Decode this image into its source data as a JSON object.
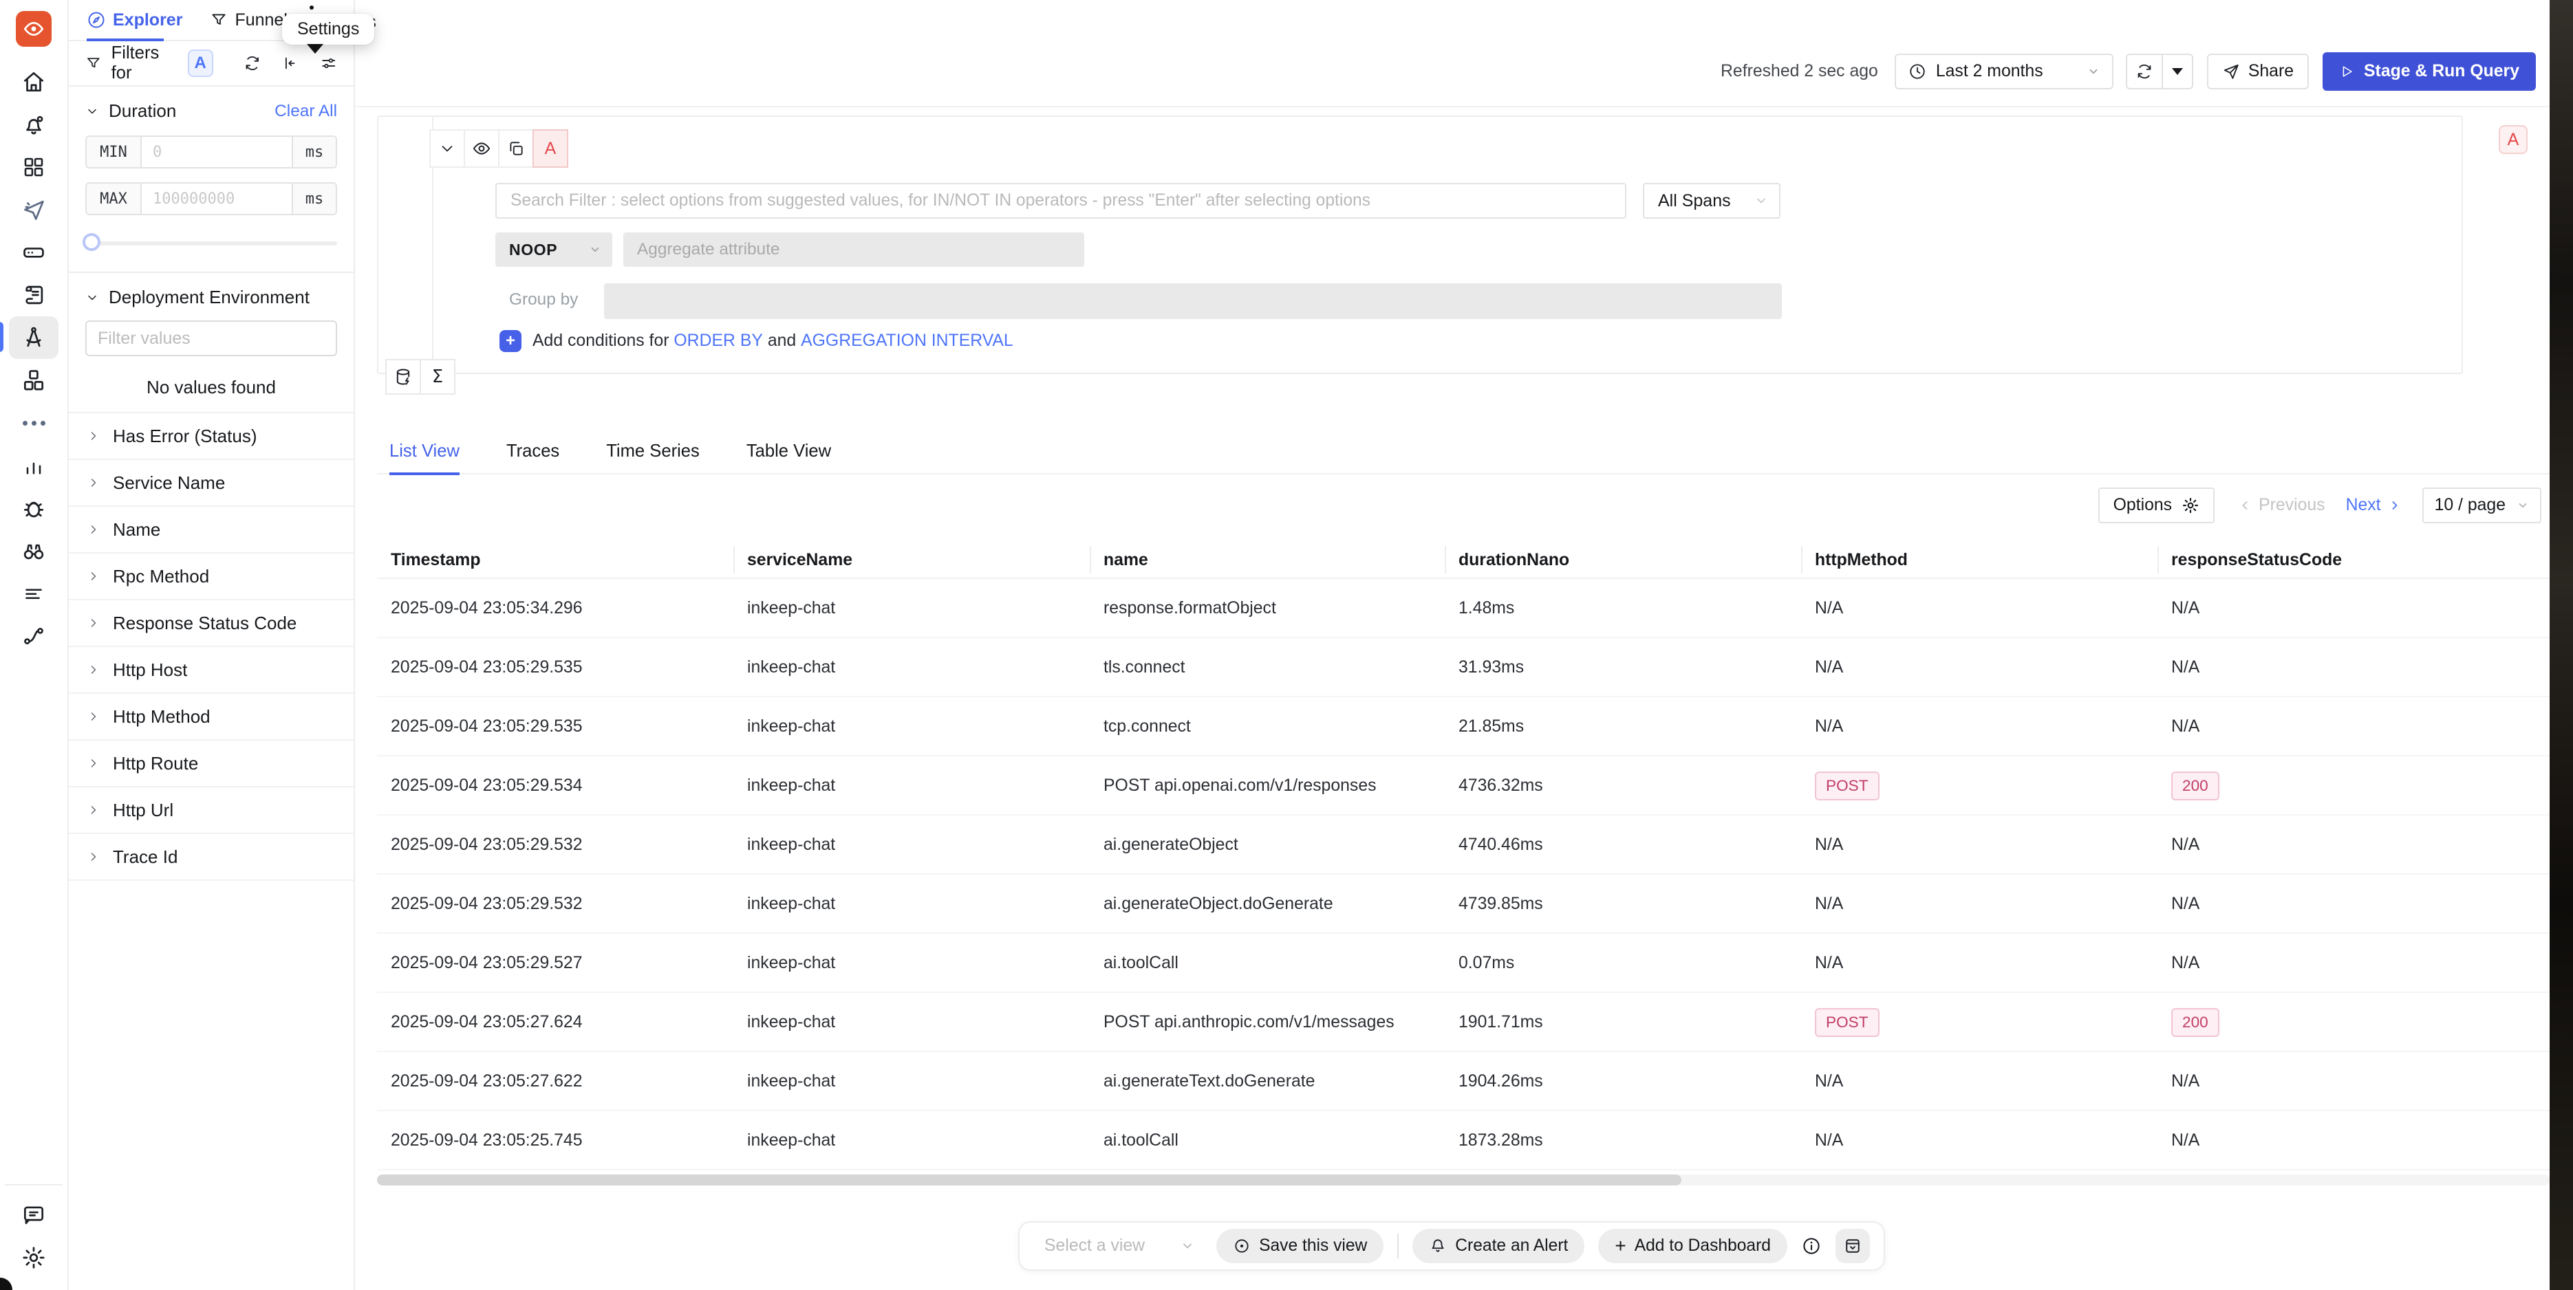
{
  "colors": {
    "accent_blue": "#4463e8",
    "link_blue": "#4e74f8",
    "run_button_blue": "#3f51d6",
    "badge_pink_text": "#c23d68",
    "badge_pink_bg": "#fdeff3",
    "query_label_red": "#e5484d",
    "logo_orange": "#e5542e"
  },
  "rail": {
    "icons": [
      "signoz-logo",
      "home",
      "alerts-bell",
      "dashboards-grid",
      "messages-plane",
      "services-server",
      "logs-scroll",
      "traces-compass",
      "infra-cubes",
      "more-dots",
      "metrics-chart",
      "exceptions-bug",
      "service-map-binoculars",
      "billing-list",
      "integrations-pipeline"
    ],
    "bottom_icons": [
      "support-chat",
      "settings-gear"
    ],
    "active_icon": "traces-compass"
  },
  "tabs": {
    "explorer": "Explorer",
    "funnels": "Funnels",
    "views_clipped": "ws",
    "settings_tooltip": "Settings"
  },
  "filters": {
    "title": "Filters for",
    "query_badge": "A",
    "duration": {
      "label": "Duration",
      "clear_all": "Clear All",
      "min_label": "MIN",
      "min_placeholder": "0",
      "max_label": "MAX",
      "max_placeholder": "100000000",
      "unit": "ms"
    },
    "deployment": {
      "label": "Deployment Environment",
      "placeholder": "Filter values",
      "empty": "No values found"
    },
    "collapsed_sections": [
      "Has Error (Status)",
      "Service Name",
      "Name",
      "Rpc Method",
      "Response Status Code",
      "Http Host",
      "Http Method",
      "Http Route",
      "Http Url",
      "Trace Id"
    ]
  },
  "header": {
    "refreshed": "Refreshed 2 sec ago",
    "time_range": "Last 2 months",
    "share": "Share",
    "run": "Stage & Run Query"
  },
  "query": {
    "label": "A",
    "search_placeholder": "Search Filter : select options from suggested values, for IN/NOT IN operators - press \"Enter\" after selecting options",
    "span_scope": "All Spans",
    "aggregate_op": "NOOP",
    "aggregate_placeholder": "Aggregate attribute",
    "group_by_label": "Group by",
    "add_conditions_prefix": "Add conditions for",
    "order_by_link": "ORDER BY",
    "and_word": "and",
    "agg_interval_link": "AGGREGATION INTERVAL",
    "plus": "+"
  },
  "views": {
    "tabs": [
      "List View",
      "Traces",
      "Time Series",
      "Table View"
    ],
    "active": "List View"
  },
  "results_toolbar": {
    "options": "Options",
    "previous": "Previous",
    "next": "Next",
    "page_size": "10 / page"
  },
  "table": {
    "columns": [
      "Timestamp",
      "serviceName",
      "name",
      "durationNano",
      "httpMethod",
      "responseStatusCode"
    ],
    "rows": [
      {
        "timestamp": "2025-09-04 23:05:34.296",
        "service": "inkeep-chat",
        "name": "response.formatObject",
        "duration": "1.48ms",
        "method": {
          "text": "N/A",
          "badge": false
        },
        "status": {
          "text": "N/A",
          "badge": false
        }
      },
      {
        "timestamp": "2025-09-04 23:05:29.535",
        "service": "inkeep-chat",
        "name": "tls.connect",
        "duration": "31.93ms",
        "method": {
          "text": "N/A",
          "badge": false
        },
        "status": {
          "text": "N/A",
          "badge": false
        }
      },
      {
        "timestamp": "2025-09-04 23:05:29.535",
        "service": "inkeep-chat",
        "name": "tcp.connect",
        "duration": "21.85ms",
        "method": {
          "text": "N/A",
          "badge": false
        },
        "status": {
          "text": "N/A",
          "badge": false
        }
      },
      {
        "timestamp": "2025-09-04 23:05:29.534",
        "service": "inkeep-chat",
        "name": "POST api.openai.com/v1/responses",
        "duration": "4736.32ms",
        "method": {
          "text": "POST",
          "badge": true
        },
        "status": {
          "text": "200",
          "badge": true
        }
      },
      {
        "timestamp": "2025-09-04 23:05:29.532",
        "service": "inkeep-chat",
        "name": "ai.generateObject",
        "duration": "4740.46ms",
        "method": {
          "text": "N/A",
          "badge": false
        },
        "status": {
          "text": "N/A",
          "badge": false
        }
      },
      {
        "timestamp": "2025-09-04 23:05:29.532",
        "service": "inkeep-chat",
        "name": "ai.generateObject.doGenerate",
        "duration": "4739.85ms",
        "method": {
          "text": "N/A",
          "badge": false
        },
        "status": {
          "text": "N/A",
          "badge": false
        }
      },
      {
        "timestamp": "2025-09-04 23:05:29.527",
        "service": "inkeep-chat",
        "name": "ai.toolCall",
        "duration": "0.07ms",
        "method": {
          "text": "N/A",
          "badge": false
        },
        "status": {
          "text": "N/A",
          "badge": false
        }
      },
      {
        "timestamp": "2025-09-04 23:05:27.624",
        "service": "inkeep-chat",
        "name": "POST api.anthropic.com/v1/messages",
        "duration": "1901.71ms",
        "method": {
          "text": "POST",
          "badge": true
        },
        "status": {
          "text": "200",
          "badge": true
        }
      },
      {
        "timestamp": "2025-09-04 23:05:27.622",
        "service": "inkeep-chat",
        "name": "ai.generateText.doGenerate",
        "duration": "1904.26ms",
        "method": {
          "text": "N/A",
          "badge": false
        },
        "status": {
          "text": "N/A",
          "badge": false
        }
      },
      {
        "timestamp": "2025-09-04 23:05:25.745",
        "service": "inkeep-chat",
        "name": "ai.toolCall",
        "duration": "1873.28ms",
        "method": {
          "text": "N/A",
          "badge": false
        },
        "status": {
          "text": "N/A",
          "badge": false
        }
      }
    ]
  },
  "footer": {
    "select_view": "Select a view",
    "save_view": "Save this view",
    "create_alert": "Create an Alert",
    "add_dashboard": "Add to Dashboard",
    "plus": "+"
  }
}
